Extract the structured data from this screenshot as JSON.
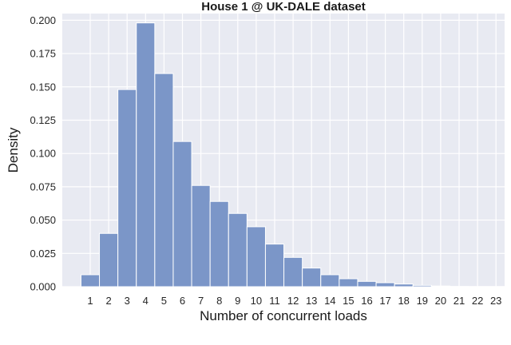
{
  "chart_data": {
    "type": "bar",
    "title": "House 1 @ UK-DALE dataset",
    "xlabel": "Number of concurrent loads",
    "ylabel": "Density",
    "categories": [
      "1",
      "2",
      "3",
      "4",
      "5",
      "6",
      "7",
      "8",
      "9",
      "10",
      "11",
      "12",
      "13",
      "14",
      "15",
      "16",
      "17",
      "18",
      "19",
      "20",
      "21",
      "22",
      "23"
    ],
    "values": [
      0.009,
      0.04,
      0.148,
      0.198,
      0.16,
      0.109,
      0.076,
      0.064,
      0.055,
      0.045,
      0.032,
      0.022,
      0.014,
      0.009,
      0.006,
      0.004,
      0.003,
      0.002,
      0.001,
      0.0005,
      0.0002,
      0.0001,
      0.0001
    ],
    "ylim": [
      0,
      0.205
    ],
    "yticks": [
      0.0,
      0.025,
      0.05,
      0.075,
      0.1,
      0.125,
      0.15,
      0.175,
      0.2
    ],
    "ytick_labels": [
      "0.000",
      "0.025",
      "0.050",
      "0.075",
      "0.100",
      "0.125",
      "0.150",
      "0.175",
      "0.200"
    ],
    "grid": true,
    "colors": {
      "bar": "#7b96c8",
      "background": "#e8eaf2",
      "grid": "#ffffff"
    }
  }
}
